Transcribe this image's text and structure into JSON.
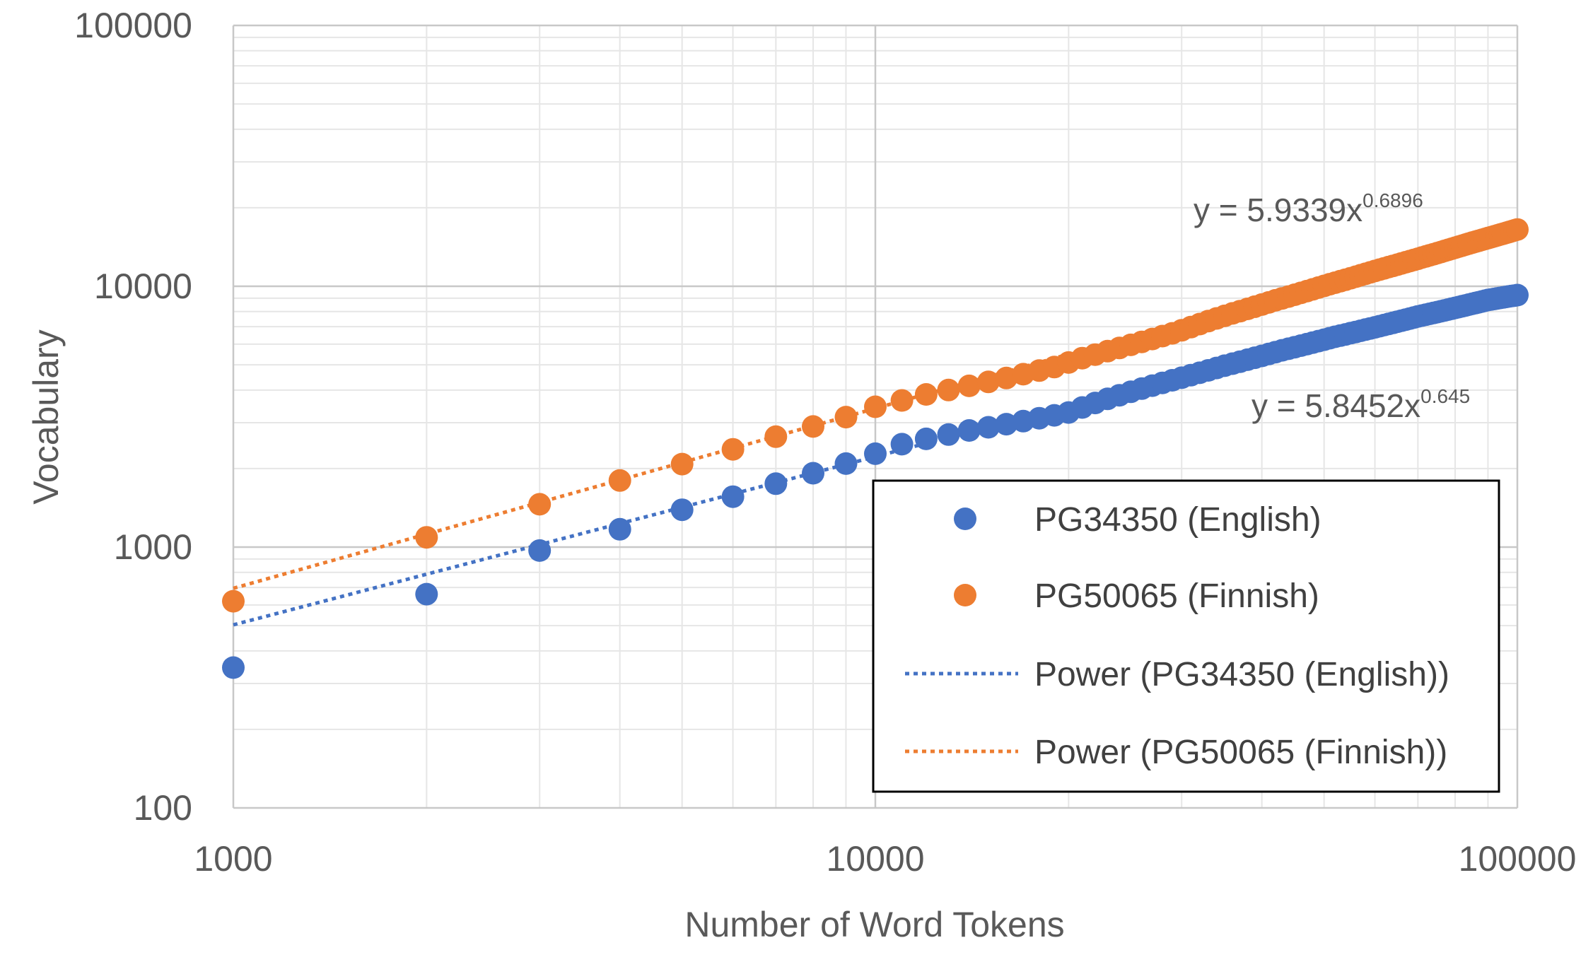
{
  "chart_data": {
    "type": "scatter",
    "title": "",
    "xlabel": "Number of Word Tokens",
    "ylabel": "Vocabulary",
    "xscale": "log",
    "yscale": "log",
    "xlim": [
      1000,
      100000
    ],
    "ylim": [
      100,
      100000
    ],
    "xticks": [
      "1000",
      "10000",
      "100000"
    ],
    "yticks": [
      "100",
      "1000",
      "10000",
      "100000"
    ],
    "grid": true,
    "legend_position": "bottom-right",
    "series": [
      {
        "name": "PG34350 (English)",
        "color": "#4472C4",
        "marker": "circle",
        "trendline": {
          "type": "power",
          "name": "Power (PG34350 (English))",
          "a": 5.8452,
          "b": 0.645,
          "equation_prefix": "y = 5.8452x",
          "equation_exponent": "0.645"
        },
        "x": [
          1000,
          2000,
          3000,
          4000,
          5000,
          6000,
          7000,
          8000,
          9000,
          10000,
          11000,
          12000,
          13000,
          14000,
          15000,
          16000,
          17000,
          18000,
          19000,
          20000,
          21000,
          22000,
          23000,
          24000,
          25000,
          26000,
          27000,
          28000,
          29000,
          30000,
          31000,
          32000,
          33000,
          34000,
          35000,
          36000,
          37000,
          38000,
          39000,
          40000,
          41000,
          42000,
          43000,
          44000,
          45000,
          46000,
          47000,
          48000,
          49000,
          50000,
          51000,
          52000,
          53000,
          54000,
          55000,
          56000,
          57000,
          58000,
          59000,
          60000,
          61000,
          62000,
          63000,
          64000,
          65000,
          66000,
          67000,
          68000,
          69000,
          70000,
          71000,
          72000,
          73000,
          74000,
          75000,
          76000,
          77000,
          78000,
          79000,
          80000,
          81000,
          82000,
          83000,
          84000,
          85000,
          86000,
          87000,
          88000,
          89000,
          90000,
          91000,
          92000,
          93000,
          94000,
          95000,
          96000,
          97000,
          98000,
          99000,
          100000
        ],
        "y": [
          345,
          660,
          970,
          1170,
          1390,
          1560,
          1750,
          1920,
          2090,
          2280,
          2480,
          2600,
          2700,
          2800,
          2880,
          2960,
          3040,
          3120,
          3200,
          3280,
          3430,
          3570,
          3700,
          3820,
          3940,
          4050,
          4160,
          4260,
          4360,
          4460,
          4560,
          4660,
          4760,
          4860,
          4960,
          5050,
          5140,
          5230,
          5320,
          5410,
          5500,
          5590,
          5680,
          5760,
          5840,
          5920,
          6000,
          6080,
          6160,
          6240,
          6320,
          6400,
          6470,
          6540,
          6610,
          6680,
          6750,
          6820,
          6890,
          6960,
          7030,
          7100,
          7170,
          7240,
          7310,
          7380,
          7450,
          7520,
          7590,
          7660,
          7720,
          7780,
          7840,
          7900,
          7960,
          8020,
          8080,
          8140,
          8200,
          8260,
          8320,
          8380,
          8440,
          8500,
          8560,
          8620,
          8680,
          8740,
          8800,
          8860,
          8900,
          8940,
          8980,
          9020,
          9060,
          9100,
          9140,
          9180,
          9210,
          9250
        ]
      },
      {
        "name": "PG50065 (Finnish)",
        "color": "#ED7D31",
        "marker": "circle",
        "trendline": {
          "type": "power",
          "name": "Power (PG50065 (Finnish))",
          "a": 5.9339,
          "b": 0.6896,
          "equation_prefix": "y = 5.9339x",
          "equation_exponent": "0.6896"
        },
        "x": [
          1000,
          2000,
          3000,
          4000,
          5000,
          6000,
          7000,
          8000,
          9000,
          10000,
          11000,
          12000,
          13000,
          14000,
          15000,
          16000,
          17000,
          18000,
          19000,
          20000,
          21000,
          22000,
          23000,
          24000,
          25000,
          26000,
          27000,
          28000,
          29000,
          30000,
          31000,
          32000,
          33000,
          34000,
          35000,
          36000,
          37000,
          38000,
          39000,
          40000,
          41000,
          42000,
          43000,
          44000,
          45000,
          46000,
          47000,
          48000,
          49000,
          50000,
          51000,
          52000,
          53000,
          54000,
          55000,
          56000,
          57000,
          58000,
          59000,
          60000,
          61000,
          62000,
          63000,
          64000,
          65000,
          66000,
          67000,
          68000,
          69000,
          70000,
          71000,
          72000,
          73000,
          74000,
          75000,
          76000,
          77000,
          78000,
          79000,
          80000,
          81000,
          82000,
          83000,
          84000,
          85000,
          86000,
          87000,
          88000,
          89000,
          90000,
          91000,
          92000,
          93000,
          94000,
          95000,
          96000,
          97000,
          98000,
          99000,
          100000
        ],
        "y": [
          620,
          1090,
          1460,
          1800,
          2080,
          2370,
          2650,
          2900,
          3150,
          3450,
          3650,
          3850,
          4000,
          4150,
          4300,
          4450,
          4600,
          4750,
          4900,
          5100,
          5300,
          5470,
          5640,
          5800,
          5960,
          6120,
          6280,
          6440,
          6600,
          6780,
          6970,
          7160,
          7350,
          7530,
          7700,
          7870,
          8030,
          8190,
          8350,
          8510,
          8670,
          8830,
          8980,
          9130,
          9280,
          9430,
          9580,
          9730,
          9880,
          10030,
          10180,
          10320,
          10460,
          10600,
          10740,
          10880,
          11020,
          11160,
          11300,
          11440,
          11580,
          11710,
          11840,
          11970,
          12100,
          12230,
          12360,
          12490,
          12620,
          12750,
          12880,
          13010,
          13140,
          13270,
          13400,
          13530,
          13660,
          13790,
          13920,
          14050,
          14180,
          14310,
          14440,
          14570,
          14700,
          14820,
          14940,
          15060,
          15180,
          15300,
          15420,
          15540,
          15660,
          15780,
          15900,
          16020,
          16140,
          16260,
          16380,
          16500
        ]
      }
    ]
  }
}
